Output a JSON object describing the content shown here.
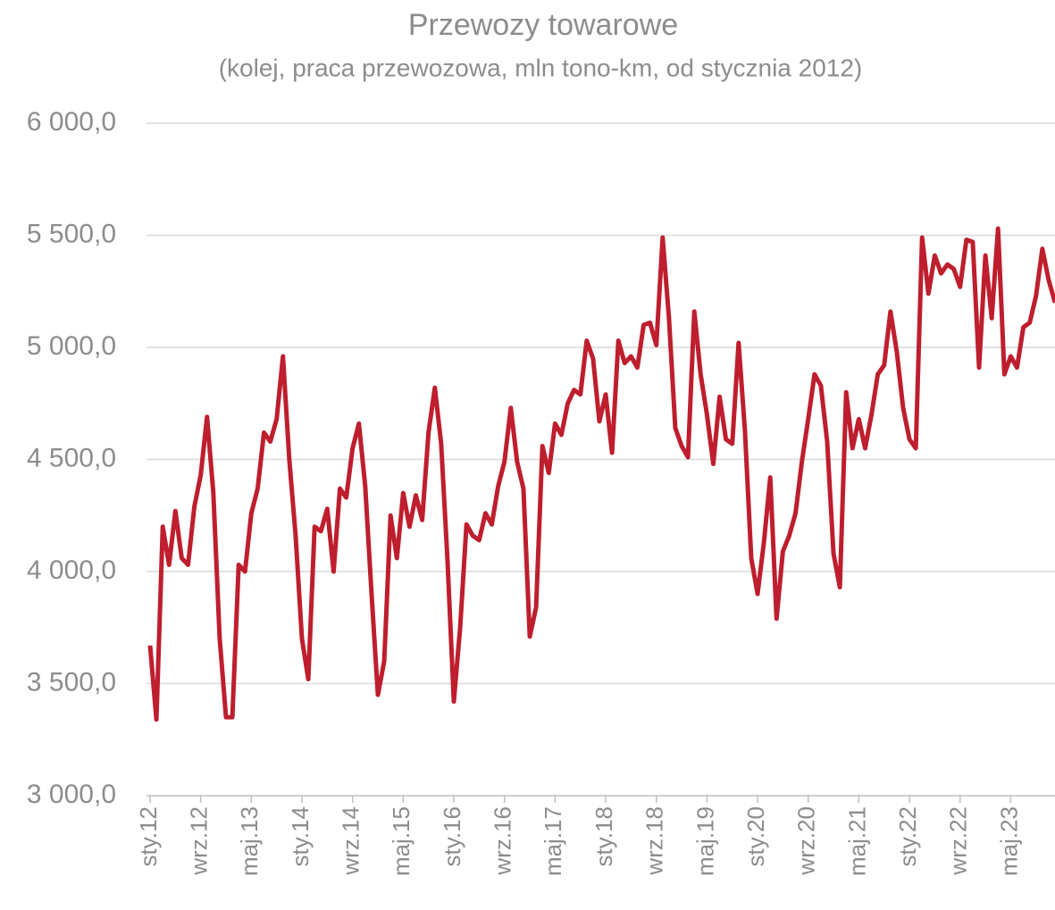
{
  "chart_data": {
    "type": "line",
    "title": "Przewozy towarowe",
    "subtitle": "(kolej, praca przewozowa, mln tono-km, od stycznia 2012)",
    "categories": [
      "sty.12",
      null,
      null,
      null,
      null,
      null,
      null,
      null,
      "wrz.12",
      null,
      null,
      null,
      null,
      null,
      null,
      null,
      "maj.13",
      null,
      null,
      null,
      null,
      null,
      null,
      null,
      "sty.14",
      null,
      null,
      null,
      null,
      null,
      null,
      null,
      "wrz.14",
      null,
      null,
      null,
      null,
      null,
      null,
      null,
      "maj.15",
      null,
      null,
      null,
      null,
      null,
      null,
      null,
      "sty.16",
      null,
      null,
      null,
      null,
      null,
      null,
      null,
      "wrz.16",
      null,
      null,
      null,
      null,
      null,
      null,
      null,
      "maj.17",
      null,
      null,
      null,
      null,
      null,
      null,
      null,
      "sty.18",
      null,
      null,
      null,
      null,
      null,
      null,
      null,
      "wrz.18",
      null,
      null,
      null,
      null,
      null,
      null,
      null,
      "maj.19",
      null,
      null,
      null,
      null,
      null,
      null,
      null,
      "sty.20",
      null,
      null,
      null,
      null,
      null,
      null,
      null,
      "wrz.20",
      null,
      null,
      null,
      null,
      null,
      null,
      null,
      "maj.21",
      null,
      null,
      null,
      null,
      null,
      null,
      null,
      "sty.22",
      null,
      null,
      null,
      null,
      null,
      null,
      null,
      "wrz.22",
      null,
      null,
      null,
      null,
      null,
      null,
      null,
      "maj.23",
      null,
      null,
      null,
      null,
      null,
      null,
      null
    ],
    "series": [
      {
        "name": "Przewozy towarowe",
        "color": "#be1e2d",
        "values": [
          3670,
          3340,
          4200,
          4030,
          4270,
          4060,
          4030,
          4290,
          4430,
          4690,
          4350,
          3700,
          3350,
          3350,
          4030,
          4000,
          4260,
          4370,
          4620,
          4580,
          4680,
          4960,
          4500,
          4160,
          3700,
          3520,
          4200,
          4180,
          4280,
          4000,
          4370,
          4330,
          4550,
          4660,
          4380,
          3900,
          3450,
          3600,
          4250,
          4060,
          4350,
          4200,
          4340,
          4230,
          4620,
          4820,
          4570,
          4050,
          3420,
          3750,
          4210,
          4160,
          4140,
          4260,
          4210,
          4380,
          4490,
          4730,
          4490,
          4370,
          3710,
          3840,
          4560,
          4440,
          4660,
          4610,
          4750,
          4810,
          4790,
          5030,
          4950,
          4670,
          4790,
          4530,
          5030,
          4930,
          4960,
          4910,
          5100,
          5110,
          5010,
          5490,
          5130,
          4640,
          4560,
          4510,
          5160,
          4880,
          4700,
          4480,
          4780,
          4590,
          4570,
          5020,
          4630,
          4060,
          3900,
          4130,
          4420,
          3790,
          4090,
          4160,
          4260,
          4490,
          4680,
          4880,
          4830,
          4580,
          4080,
          3930,
          4800,
          4550,
          4680,
          4550,
          4700,
          4880,
          4920,
          5160,
          4980,
          4730,
          4590,
          4550,
          5490,
          5240,
          5410,
          5330,
          5370,
          5350,
          5270,
          5480,
          5470,
          4910,
          5410,
          5130,
          5530,
          4880,
          4960,
          4910,
          5090,
          5110,
          5230,
          5440,
          5300,
          5200
        ]
      }
    ],
    "ylim": [
      3000,
      6000
    ],
    "yticks": [
      {
        "value": 3000,
        "label": "3 000,0"
      },
      {
        "value": 3500,
        "label": "3 500,0"
      },
      {
        "value": 4000,
        "label": "4 000,0"
      },
      {
        "value": 4500,
        "label": "4 500,0"
      },
      {
        "value": 5000,
        "label": "5 000,0"
      },
      {
        "value": 5500,
        "label": "5 500,0"
      },
      {
        "value": 6000,
        "label": "6 000,0"
      }
    ],
    "grid": true
  }
}
